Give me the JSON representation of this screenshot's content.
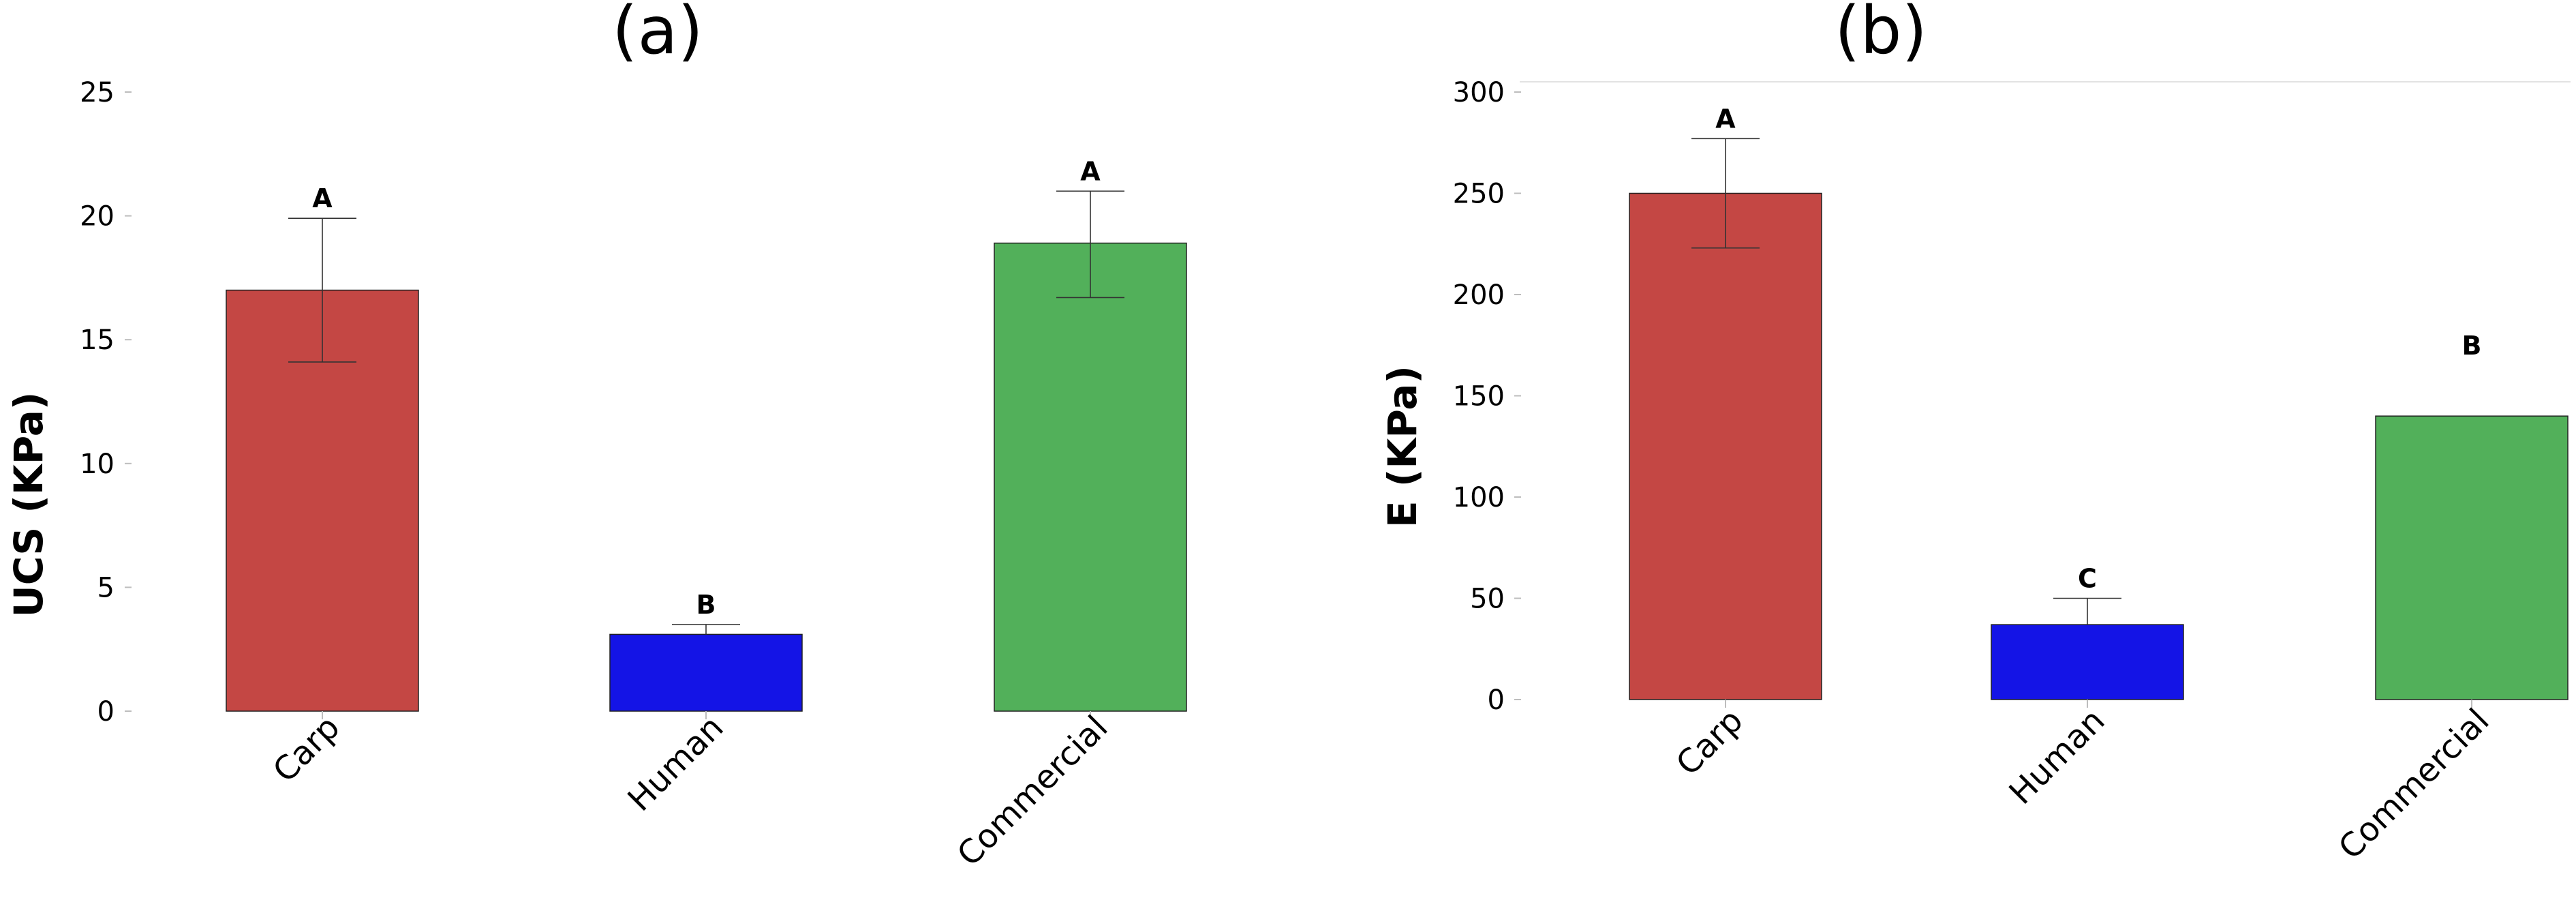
{
  "chart_data": [
    {
      "type": "bar",
      "title": "(a)",
      "xlabel": "",
      "ylabel": "UCS (KPa)",
      "categories": [
        "Carp",
        "Human",
        "Commercial"
      ],
      "values": [
        17.0,
        3.1,
        18.9
      ],
      "error_high": [
        19.9,
        3.5,
        21.0
      ],
      "error_low": [
        14.1,
        null,
        16.7
      ],
      "significance_letters": [
        "A",
        "B",
        "A"
      ],
      "colors": [
        "#c44744",
        "#1414e6",
        "#52b05a"
      ],
      "ylim": [
        0,
        25
      ],
      "yticks": [
        "0",
        "5",
        "10",
        "15",
        "20",
        "25"
      ],
      "grid": false
    },
    {
      "type": "bar",
      "title": "(b)",
      "xlabel": "",
      "ylabel": "E (KPa)",
      "categories": [
        "Carp",
        "Human",
        "Commercial"
      ],
      "values": [
        250,
        37,
        140
      ],
      "error_high": [
        277,
        50,
        null
      ],
      "error_low": [
        223,
        null,
        null
      ],
      "significance_letters": [
        "A",
        "C",
        "B"
      ],
      "colors": [
        "#c44744",
        "#1414e6",
        "#52b05a"
      ],
      "ylim": [
        0,
        300
      ],
      "yticks": [
        "0",
        "50",
        "100",
        "150",
        "200",
        "250",
        "300"
      ],
      "grid": false
    }
  ]
}
